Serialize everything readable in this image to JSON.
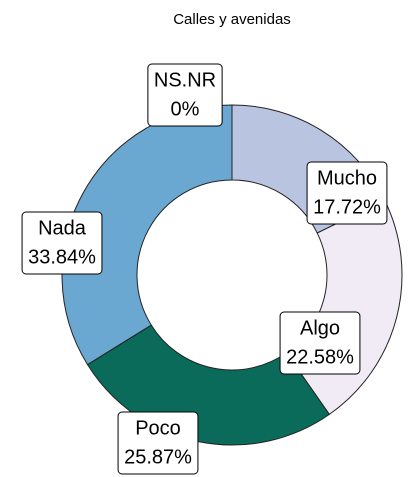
{
  "chart_data": {
    "type": "donut",
    "title": "Calles y avenidas",
    "categories": [
      "Mucho",
      "Algo",
      "Poco",
      "Nada",
      "NS.NR"
    ],
    "values": [
      17.72,
      22.58,
      25.87,
      33.84,
      0
    ],
    "value_labels": [
      "17.72%",
      "22.58%",
      "25.87%",
      "33.84%",
      "0%"
    ],
    "colors": [
      "#b9c4e1",
      "#f1ebf5",
      "#0b6b5a",
      "#6aa8d1",
      "#3a8fc0"
    ]
  }
}
